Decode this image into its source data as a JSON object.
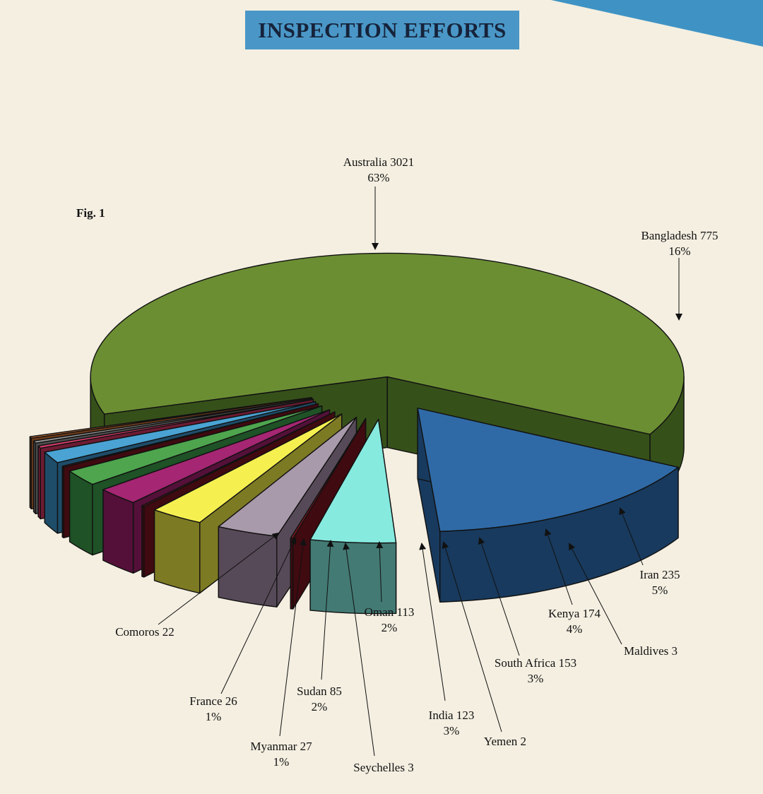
{
  "title": "INSPECTION EFFORTS",
  "figure_label": "Fig. 1",
  "colors": {
    "background": "#f4efe1",
    "title_box": "#4a97c7",
    "corner_band": "#3f93c4"
  },
  "chart_data": {
    "type": "pie",
    "style": "3d-exploded",
    "title": "INSPECTION EFFORTS",
    "slices": [
      {
        "label": "Australia",
        "value": 3021,
        "percent": "63%",
        "color": "#6b8e33",
        "side": "#36501a"
      },
      {
        "label": "Bangladesh",
        "value": 775,
        "percent": "16%",
        "color": "#2f6aa6",
        "side": "#183a5e"
      },
      {
        "label": "Iran",
        "value": 235,
        "percent": "5%",
        "color": "#86eadf",
        "side": "#437a74"
      },
      {
        "label": "Maldives",
        "value": 3,
        "percent": "",
        "color": "#7a1620",
        "side": "#3f0a10"
      },
      {
        "label": "Kenya",
        "value": 174,
        "percent": "4%",
        "color": "#a99aab",
        "side": "#574a58"
      },
      {
        "label": "South Africa",
        "value": 153,
        "percent": "3%",
        "color": "#f5f050",
        "side": "#7d7a24"
      },
      {
        "label": "Yemen",
        "value": 2,
        "percent": "",
        "color": "#7a1620",
        "side": "#3f0a10"
      },
      {
        "label": "India",
        "value": 123,
        "percent": "3%",
        "color": "#a52673",
        "side": "#541039"
      },
      {
        "label": "Oman",
        "value": 113,
        "percent": "2%",
        "color": "#4ea54e",
        "side": "#1f5226"
      },
      {
        "label": "Seychelles",
        "value": 3,
        "percent": "",
        "color": "#7a1620",
        "side": "#3f0a10"
      },
      {
        "label": "Sudan",
        "value": 85,
        "percent": "2%",
        "color": "#4aa3d3",
        "side": "#1e4d6a"
      },
      {
        "label": "Myanmar",
        "value": 27,
        "percent": "1%",
        "color": "#d83c6a",
        "side": "#6d1b33"
      },
      {
        "label": "France",
        "value": 26,
        "percent": "1%",
        "color": "#9a9a9a",
        "side": "#4d4d4d"
      },
      {
        "label": "Comoros",
        "value": 22,
        "percent": "",
        "color": "#d87a3c",
        "side": "#6b3a1a"
      }
    ]
  }
}
